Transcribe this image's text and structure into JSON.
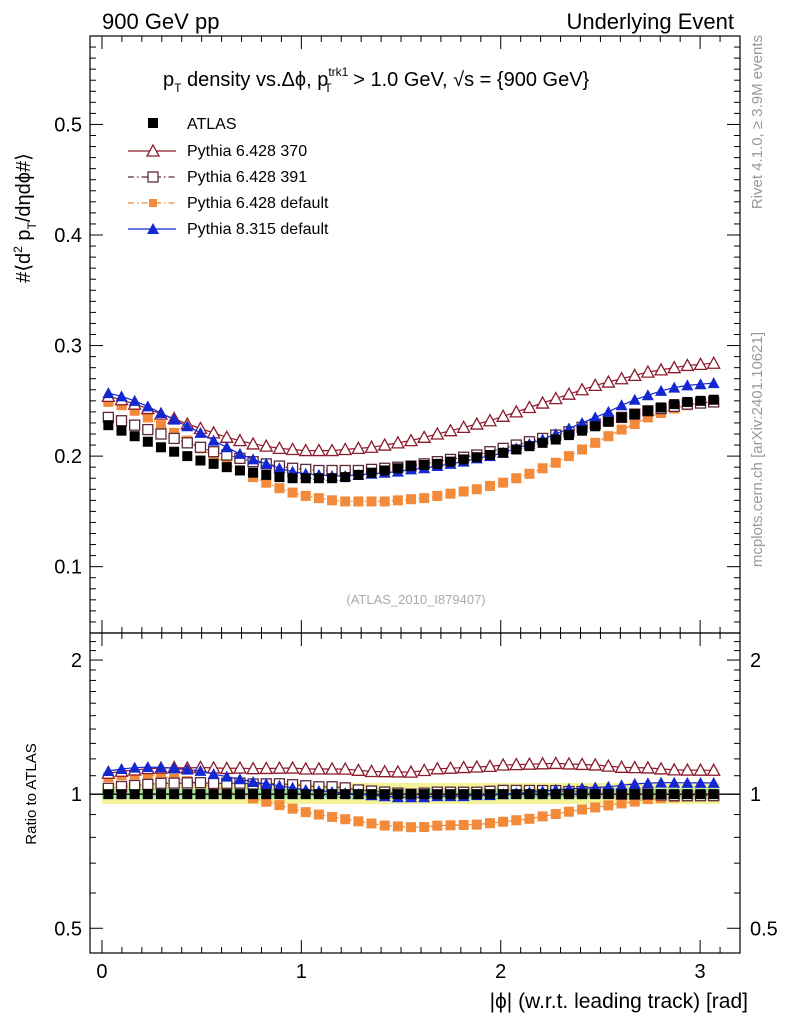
{
  "header": {
    "left": "900 GeV pp",
    "right": "Underlying Event",
    "side_top": "Rivet 4.1.0, ≥ 3.9M events",
    "side_bottom": "mcplots.cern.ch [arXiv:2401.10621]"
  },
  "chart_data": {
    "type": "scatter",
    "title": "pT density vs.Δϕ, pT trk1 > 1.0 GeV, √s = {900 GeV}",
    "title_parts": {
      "p": "p",
      "T": "T",
      "density": " density vs.Δϕ, ",
      "p2": "p",
      "T2": "T",
      "trk1": "trk1",
      "cut": " > 1.0 GeV, ",
      "sqrt": "√",
      "s": "s",
      "energy": " = {900 GeV}"
    },
    "analysis_id": "(ATLAS_2010_I879407)",
    "ylabel": "#⟨d² pT/dηdϕ#⟩",
    "ylabel_parts": {
      "a": "#⟨d",
      "sup2": "2",
      "b": " p",
      "T": "T",
      "c": "/dηdϕ#⟩"
    },
    "ratio_ylabel": "Ratio to ATLAS",
    "xlabel": "|ϕ| (w.r.t. leading track) [rad]",
    "xlim": [
      -0.06,
      3.2
    ],
    "ylim": [
      0.04,
      0.58
    ],
    "ratio_ylim": [
      0.44,
      2.3
    ],
    "x_ticks": [
      "0",
      "1",
      "2",
      "3"
    ],
    "y_ticks": [
      "0.1",
      "0.2",
      "0.3",
      "0.4",
      "0.5"
    ],
    "ratio_ticks": [
      "0.5",
      "1",
      "2"
    ],
    "legend": [
      "ATLAS",
      "Pythia 6.428 370",
      "Pythia 6.428 391",
      "Pythia 6.428 default",
      "Pythia 8.315 default"
    ],
    "x": [
      0.032,
      0.098,
      0.164,
      0.23,
      0.296,
      0.362,
      0.428,
      0.494,
      0.56,
      0.626,
      0.692,
      0.758,
      0.824,
      0.89,
      0.956,
      1.022,
      1.088,
      1.154,
      1.22,
      1.286,
      1.352,
      1.418,
      1.484,
      1.55,
      1.616,
      1.682,
      1.748,
      1.814,
      1.88,
      1.946,
      2.012,
      2.078,
      2.144,
      2.21,
      2.276,
      2.342,
      2.408,
      2.474,
      2.54,
      2.606,
      2.672,
      2.738,
      2.804,
      2.87,
      2.936,
      3.002,
      3.068
    ],
    "series": [
      {
        "name": "ATLAS",
        "color": "#000000",
        "marker": "filled-square",
        "line": "none",
        "values": [
          0.228,
          0.223,
          0.218,
          0.213,
          0.208,
          0.204,
          0.2,
          0.196,
          0.193,
          0.19,
          0.187,
          0.185,
          0.183,
          0.181,
          0.18,
          0.18,
          0.18,
          0.18,
          0.181,
          0.183,
          0.185,
          0.187,
          0.189,
          0.191,
          0.192,
          0.193,
          0.195,
          0.197,
          0.199,
          0.201,
          0.203,
          0.206,
          0.209,
          0.212,
          0.215,
          0.219,
          0.223,
          0.227,
          0.231,
          0.235,
          0.238,
          0.241,
          0.244,
          0.247,
          0.249,
          0.25,
          0.251
        ]
      },
      {
        "name": "Pythia 6.428 370",
        "color": "#8b1a2b",
        "marker": "open-triangle",
        "line": "solid",
        "values": [
          0.254,
          0.251,
          0.247,
          0.243,
          0.238,
          0.234,
          0.229,
          0.225,
          0.221,
          0.217,
          0.214,
          0.211,
          0.209,
          0.207,
          0.206,
          0.205,
          0.205,
          0.205,
          0.206,
          0.207,
          0.208,
          0.21,
          0.212,
          0.214,
          0.217,
          0.22,
          0.223,
          0.226,
          0.229,
          0.232,
          0.236,
          0.24,
          0.244,
          0.248,
          0.252,
          0.256,
          0.26,
          0.264,
          0.267,
          0.27,
          0.273,
          0.276,
          0.278,
          0.28,
          0.282,
          0.283,
          0.284
        ]
      },
      {
        "name": "Pythia 6.428 391",
        "color": "#5a2a3a",
        "marker": "open-square",
        "line": "dash-dot",
        "values": [
          0.235,
          0.232,
          0.228,
          0.224,
          0.22,
          0.216,
          0.212,
          0.208,
          0.204,
          0.201,
          0.198,
          0.195,
          0.193,
          0.191,
          0.189,
          0.188,
          0.187,
          0.187,
          0.187,
          0.187,
          0.188,
          0.189,
          0.19,
          0.191,
          0.193,
          0.195,
          0.197,
          0.199,
          0.201,
          0.204,
          0.207,
          0.21,
          0.213,
          0.216,
          0.219,
          0.222,
          0.226,
          0.229,
          0.232,
          0.235,
          0.238,
          0.241,
          0.243,
          0.245,
          0.247,
          0.248,
          0.249
        ]
      },
      {
        "name": "Pythia 6.428 default",
        "color": "#f28a3a",
        "marker": "filled-square",
        "line": "dash-dot",
        "values": [
          0.249,
          0.246,
          0.241,
          0.235,
          0.228,
          0.221,
          0.214,
          0.207,
          0.2,
          0.193,
          0.187,
          0.181,
          0.176,
          0.171,
          0.167,
          0.164,
          0.162,
          0.16,
          0.159,
          0.159,
          0.159,
          0.159,
          0.16,
          0.161,
          0.162,
          0.164,
          0.166,
          0.168,
          0.17,
          0.173,
          0.176,
          0.18,
          0.184,
          0.189,
          0.194,
          0.2,
          0.206,
          0.212,
          0.218,
          0.224,
          0.229,
          0.235,
          0.239,
          0.243,
          0.246,
          0.248,
          0.249
        ]
      },
      {
        "name": "Pythia 8.315 default",
        "color": "#1428d2",
        "marker": "filled-triangle",
        "line": "solid",
        "values": [
          0.257,
          0.254,
          0.25,
          0.245,
          0.239,
          0.233,
          0.227,
          0.221,
          0.214,
          0.208,
          0.202,
          0.197,
          0.193,
          0.189,
          0.186,
          0.184,
          0.183,
          0.182,
          0.182,
          0.183,
          0.184,
          0.185,
          0.186,
          0.188,
          0.189,
          0.191,
          0.193,
          0.195,
          0.198,
          0.2,
          0.203,
          0.207,
          0.211,
          0.215,
          0.22,
          0.225,
          0.23,
          0.235,
          0.24,
          0.246,
          0.251,
          0.255,
          0.259,
          0.262,
          0.264,
          0.265,
          0.266
        ]
      }
    ]
  }
}
